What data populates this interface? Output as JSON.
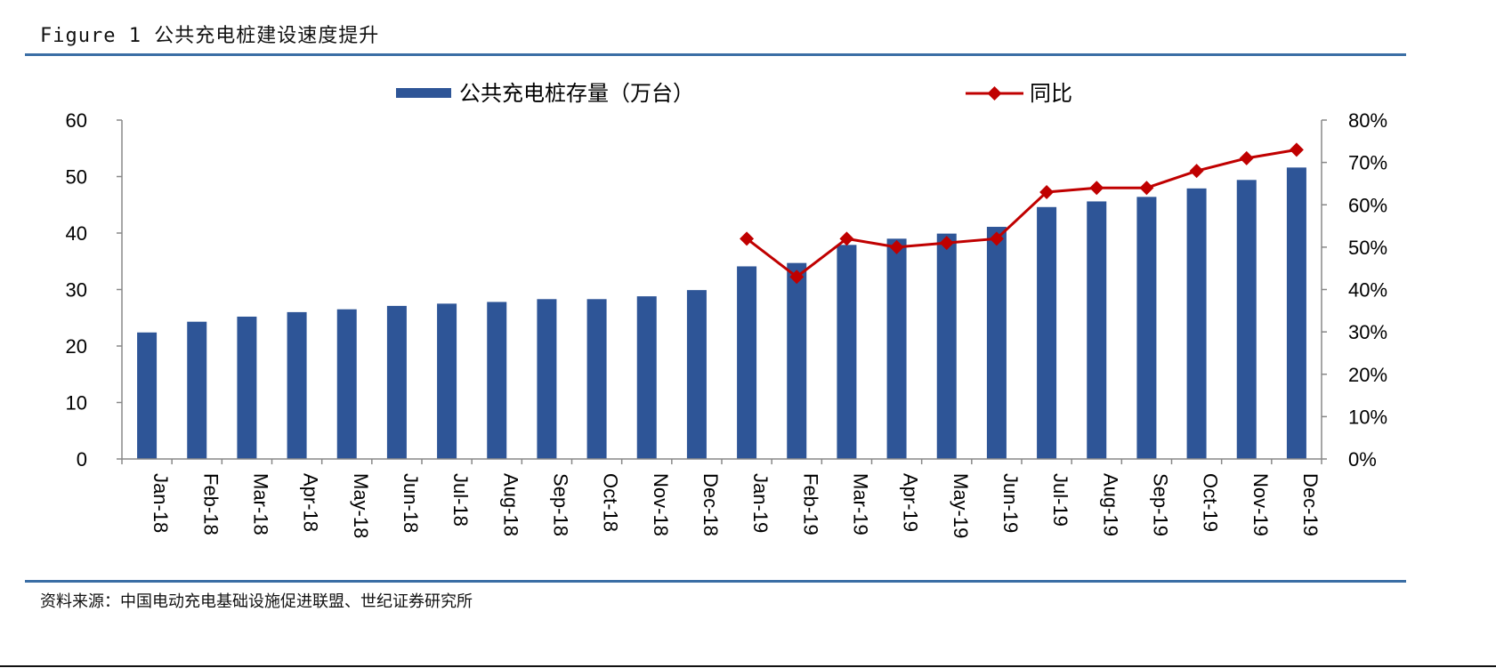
{
  "figure": {
    "title": "Figure 1 公共充电桩建设速度提升",
    "source": "资料来源：中国电动充电基础设施促进联盟、世纪证券研究所"
  },
  "chart_data": {
    "type": "bar",
    "categories": [
      "Jan-18",
      "Feb-18",
      "Mar-18",
      "Apr-18",
      "May-18",
      "Jun-18",
      "Jul-18",
      "Aug-18",
      "Sep-18",
      "Oct-18",
      "Nov-18",
      "Dec-18",
      "Jan-19",
      "Feb-19",
      "Mar-19",
      "Apr-19",
      "May-19",
      "Jun-19",
      "Jul-19",
      "Aug-19",
      "Sep-19",
      "Oct-19",
      "Nov-19",
      "Dec-19"
    ],
    "series": [
      {
        "name": "公共充电桩存量（万台）",
        "type": "bar",
        "axis": "left",
        "color": "#2e5597",
        "values": [
          22.4,
          24.3,
          25.2,
          26.0,
          26.5,
          27.1,
          27.5,
          27.8,
          28.3,
          28.3,
          28.8,
          29.9,
          34.1,
          34.7,
          37.9,
          39.0,
          39.9,
          41.1,
          44.6,
          45.6,
          46.4,
          47.9,
          49.4,
          51.6
        ]
      },
      {
        "name": "同比",
        "type": "line",
        "axis": "right",
        "color": "#c00000",
        "values": [
          null,
          null,
          null,
          null,
          null,
          null,
          null,
          null,
          null,
          null,
          null,
          null,
          52,
          43,
          52,
          50,
          51,
          52,
          63,
          64,
          64,
          68,
          71,
          73
        ]
      }
    ],
    "y_left": {
      "lim": [
        0,
        60
      ],
      "ticks": [
        "0",
        "10",
        "20",
        "30",
        "40",
        "50",
        "60"
      ]
    },
    "y_right": {
      "lim": [
        0,
        80
      ],
      "ticks": [
        "0%",
        "10%",
        "20%",
        "30%",
        "40%",
        "50%",
        "60%",
        "70%",
        "80%"
      ]
    },
    "legend": {
      "position": "top"
    },
    "grid": false
  }
}
